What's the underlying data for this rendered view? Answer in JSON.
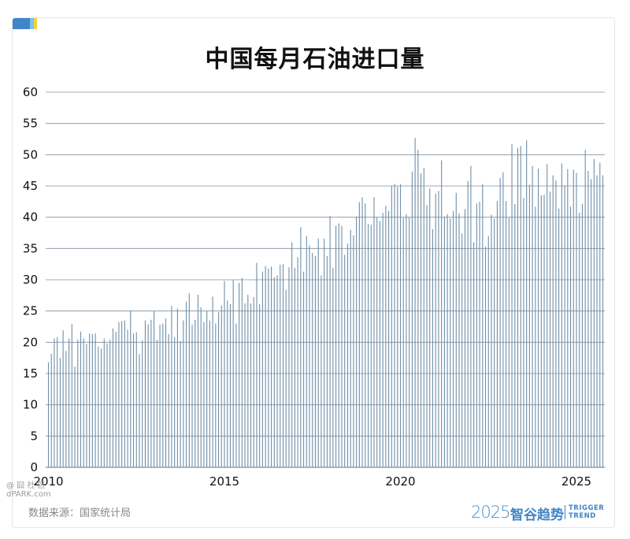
{
  "header": {
    "title": "中国每月石油进口量"
  },
  "footer": {
    "source": "数据来源：国家统计局",
    "watermark_line1": "@ 囧 社 区",
    "watermark_line2": "dPARK.com",
    "brand_year": "2025",
    "brand_name": "智谷趋势",
    "brand_en_line1": "TRIGGER",
    "brand_en_line2": "TREND"
  },
  "colors": {
    "bar": "#6f8fa8",
    "grid": "#7f8fa0",
    "brand": "#3f86c9",
    "accent_yellow": "#f1d23b"
  },
  "chart_data": {
    "type": "bar",
    "title": "中国每月石油进口量",
    "x_start": "2010-01",
    "frequency": "monthly",
    "xticks": [
      "2010",
      "2015",
      "2020",
      "2025"
    ],
    "ylim": [
      0,
      60
    ],
    "yticks": [
      0,
      5,
      10,
      15,
      20,
      25,
      30,
      35,
      40,
      45,
      50,
      55,
      60
    ],
    "grid": true,
    "values": [
      16.8,
      18.2,
      20.6,
      20.8,
      17.5,
      21.9,
      18.6,
      20.6,
      22.9,
      16.1,
      20.4,
      21.7,
      20.6,
      19.7,
      21.4,
      21.3,
      21.4,
      19.3,
      19.0,
      20.6,
      19.8,
      20.4,
      22.2,
      21.7,
      23.2,
      23.4,
      23.5,
      22.0,
      25.1,
      21.4,
      21.6,
      18.1,
      20.3,
      23.5,
      22.9,
      23.6,
      25.0,
      20.4,
      22.8,
      23.0,
      23.8,
      21.3,
      25.8,
      20.8,
      25.4,
      20.2,
      23.5,
      26.5,
      27.8,
      22.8,
      23.6,
      27.6,
      25.6,
      23.2,
      25.0,
      23.5,
      27.3,
      23.0,
      24.8,
      25.9,
      29.8,
      26.7,
      26.1,
      30.0,
      23.0,
      29.5,
      30.3,
      26.2,
      27.6,
      26.2,
      27.2,
      32.7,
      26.1,
      31.3,
      32.2,
      31.8,
      32.1,
      30.4,
      30.7,
      32.4,
      32.5,
      28.4,
      32.0,
      36.0,
      31.9,
      33.6,
      38.4,
      31.3,
      37.0,
      35.5,
      34.3,
      33.8,
      36.6,
      30.7,
      36.6,
      33.8,
      40.2,
      31.9,
      38.6,
      39.0,
      38.6,
      34.0,
      35.8,
      38.0,
      37.1,
      40.1,
      42.4,
      43.2,
      42.2,
      38.9,
      38.8,
      43.2,
      40.0,
      39.4,
      40.7,
      41.8,
      41.0,
      45.0,
      45.3,
      44.9,
      45.3,
      39.9,
      40.5,
      40.0,
      47.3,
      52.7,
      50.8,
      47.0,
      47.9,
      41.9,
      44.6,
      38.1,
      43.8,
      44.2,
      49.1,
      40.1,
      40.5,
      39.8,
      41.0,
      43.9,
      40.6,
      37.4,
      41.3,
      45.8,
      48.2,
      36.0,
      42.2,
      42.5,
      45.3,
      35.3,
      37.0,
      40.4,
      39.8,
      42.6,
      46.3,
      47.2,
      42.6,
      39.9,
      51.7,
      42.1,
      51.1,
      51.4,
      43.1,
      52.3,
      45.2,
      48.2,
      41.7,
      47.8,
      43.5,
      43.6,
      48.5,
      44.1,
      46.7,
      45.9,
      41.4,
      48.6,
      45.1,
      47.7,
      41.7,
      47.6,
      47.1,
      40.7,
      42.1,
      50.8,
      47.4,
      46.1,
      49.3,
      46.7,
      48.7,
      46.7
    ]
  }
}
